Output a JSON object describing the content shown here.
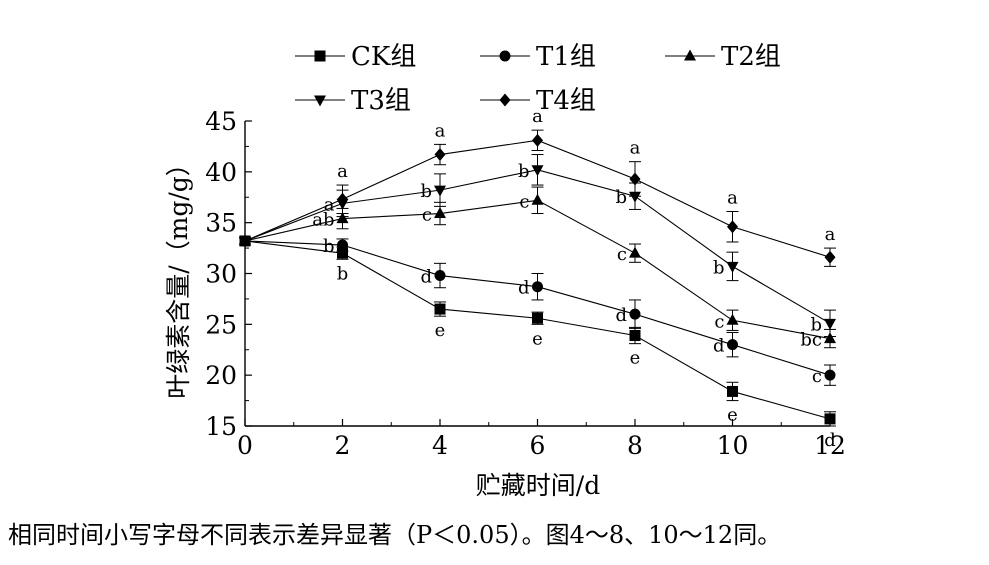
{
  "chart_data": {
    "type": "line",
    "xlabel": "贮藏时间/d",
    "ylabel": "叶绿素含量/（mg/g）",
    "x": [
      0,
      2,
      4,
      6,
      8,
      10,
      12
    ],
    "xlim": [
      0,
      12
    ],
    "ylim": [
      15,
      45
    ],
    "x_ticks": [
      "0",
      "2",
      "4",
      "6",
      "8",
      "10",
      "12"
    ],
    "y_ticks": [
      "15",
      "20",
      "25",
      "30",
      "35",
      "40",
      "45"
    ],
    "grid": false,
    "legend_position": "top",
    "series": [
      {
        "name": "CK组",
        "marker": "square",
        "values": [
          33.2,
          32.0,
          26.5,
          25.6,
          23.9,
          18.4,
          15.7
        ],
        "errors": [
          0.3,
          0.6,
          0.7,
          0.6,
          0.8,
          0.9,
          0.7
        ],
        "letters": [
          "",
          "b",
          "e",
          "e",
          "e",
          "e",
          "d"
        ]
      },
      {
        "name": "T1组",
        "marker": "circle",
        "values": [
          33.2,
          32.8,
          29.8,
          28.7,
          26.0,
          23.0,
          20.0
        ],
        "errors": [
          0.3,
          0.6,
          1.2,
          1.3,
          1.4,
          1.2,
          1.0
        ],
        "letters": [
          "",
          "b",
          "d",
          "d",
          "d",
          "d",
          "c"
        ]
      },
      {
        "name": "T2组",
        "marker": "triangle-up",
        "values": [
          33.2,
          35.4,
          35.9,
          37.2,
          32.0,
          25.4,
          23.6
        ],
        "errors": [
          0.3,
          1.0,
          1.1,
          1.3,
          0.9,
          1.0,
          0.9
        ],
        "letters": [
          "",
          "ab",
          "c",
          "c",
          "c",
          "c",
          "bc"
        ]
      },
      {
        "name": "T3组",
        "marker": "triangle-down",
        "values": [
          33.2,
          36.9,
          38.2,
          40.2,
          37.6,
          30.7,
          25.1
        ],
        "errors": [
          0.3,
          1.3,
          1.6,
          1.5,
          1.3,
          1.4,
          1.3
        ],
        "letters": [
          "",
          "a",
          "b",
          "b",
          "b",
          "b",
          "b"
        ]
      },
      {
        "name": "T4组",
        "marker": "diamond",
        "values": [
          33.2,
          37.3,
          41.7,
          43.1,
          39.3,
          34.6,
          31.6
        ],
        "errors": [
          0.3,
          1.4,
          1.0,
          1.0,
          1.7,
          1.5,
          0.9
        ],
        "letters": [
          "",
          "a",
          "a",
          "a",
          "a",
          "a",
          "a"
        ]
      }
    ]
  },
  "caption": "相同时间小写字母不同表示差异显著（P＜0.05）。图4～8、10～12同。"
}
